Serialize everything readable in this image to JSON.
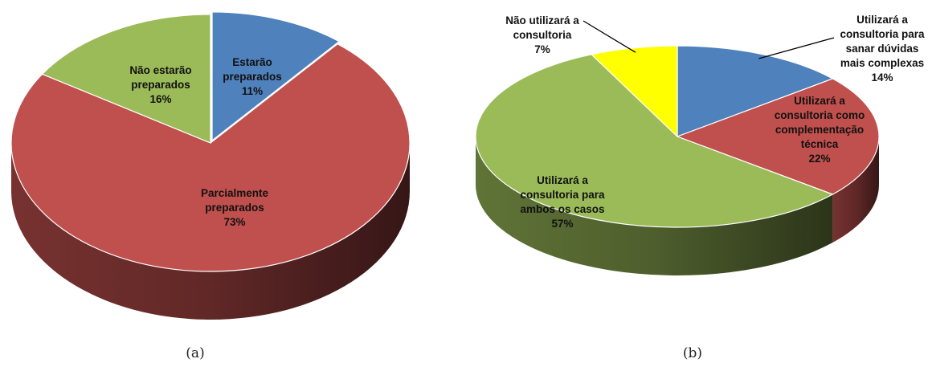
{
  "chart_data": [
    {
      "type": "pie",
      "caption": "(a)",
      "slices": [
        {
          "label": [
            "Estarão",
            "preparados"
          ],
          "value": 11,
          "pct": "11%",
          "color": "#4f81bd",
          "exploded": true
        },
        {
          "label": [
            "Parcialmente",
            "preparados"
          ],
          "value": 73,
          "pct": "73%",
          "color": "#c0504d",
          "exploded": false
        },
        {
          "label": [
            "Não estarão",
            "preparados"
          ],
          "value": 16,
          "pct": "16%",
          "color": "#9bbb59",
          "exploded": false
        }
      ]
    },
    {
      "type": "pie",
      "caption": "(b)",
      "slices": [
        {
          "label": [
            "Utilizará a",
            "consultoria para",
            "sanar dúvidas",
            "mais complexas"
          ],
          "value": 14,
          "pct": "14%",
          "color": "#4f81bd"
        },
        {
          "label": [
            "Utilizará a",
            "consultoria como",
            "complementação",
            "técnica"
          ],
          "value": 22,
          "pct": "22%",
          "color": "#c0504d"
        },
        {
          "label": [
            "Utilizará a",
            "consultoria para",
            "ambos os casos"
          ],
          "value": 57,
          "pct": "57%",
          "color": "#9bbb59"
        },
        {
          "label": [
            "Não utilizará a",
            "consultoria"
          ],
          "value": 7,
          "pct": "7%",
          "color": "#ffff00"
        }
      ]
    }
  ]
}
